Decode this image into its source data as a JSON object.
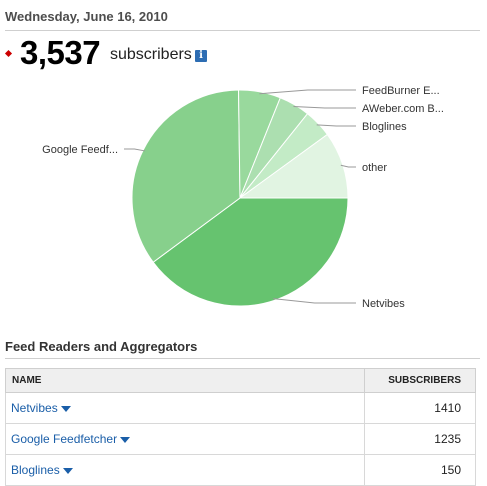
{
  "header": {
    "date": "Wednesday, June 16, 2010"
  },
  "subscribers": {
    "count": "3,537",
    "label": "subscribers",
    "info_icon": "i"
  },
  "chart_data": {
    "type": "pie",
    "slices": [
      {
        "label": "Netvibes",
        "value": 1410,
        "color": "#66c36f"
      },
      {
        "label": "Google Feedf...",
        "value": 1235,
        "color": "#87d08c"
      },
      {
        "label": "FeedBurner E...",
        "value": 223,
        "color": "#99d99d"
      },
      {
        "label": "AWeber.com B...",
        "value": 165,
        "color": "#acdfb0"
      },
      {
        "label": "Bloglines",
        "value": 150,
        "color": "#c3ebc6"
      },
      {
        "label": "other",
        "value": 354,
        "color": "#e1f4e2"
      }
    ]
  },
  "section": {
    "title": "Feed Readers and Aggregators"
  },
  "table": {
    "headers": {
      "name": "NAME",
      "subscribers": "SUBSCRIBERS"
    },
    "rows": [
      {
        "name": "Netvibes",
        "subscribers": "1410"
      },
      {
        "name": "Google Feedfetcher",
        "subscribers": "1235"
      },
      {
        "name": "Bloglines",
        "subscribers": "150"
      }
    ]
  }
}
